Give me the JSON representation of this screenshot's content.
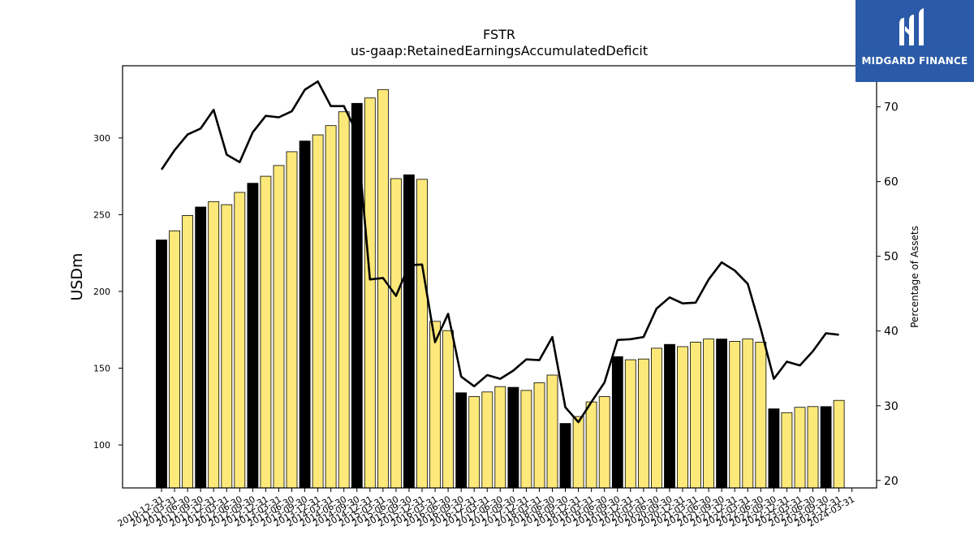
{
  "chart_data": {
    "type": "bar",
    "title": "FSTR",
    "subtitle": "us-gaap:RetainedEarningsAccumulatedDeficit",
    "ylabel": "USDm",
    "y2label": "Percentage of Assets",
    "ylim": [
      72,
      347
    ],
    "y2lim": [
      19,
      75.5
    ],
    "yticks": [
      100,
      150,
      200,
      250,
      300
    ],
    "y2ticks": [
      20,
      30,
      40,
      50,
      60,
      70
    ],
    "grid": false,
    "categories": [
      "2010-12-31",
      "2011-03-31",
      "2011-06-30",
      "2011-09-30",
      "2011-12-31",
      "2012-03-31",
      "2012-06-30",
      "2012-09-30",
      "2012-12-31",
      "2013-03-31",
      "2013-06-30",
      "2013-09-30",
      "2013-12-31",
      "2014-03-31",
      "2014-06-30",
      "2014-09-30",
      "2014-12-31",
      "2015-03-31",
      "2015-06-30",
      "2015-09-30",
      "2015-12-31",
      "2016-03-31",
      "2016-06-30",
      "2016-09-30",
      "2016-12-31",
      "2017-03-31",
      "2017-06-30",
      "2017-09-30",
      "2017-12-31",
      "2018-03-31",
      "2018-06-30",
      "2018-09-30",
      "2018-12-31",
      "2019-03-31",
      "2019-06-30",
      "2019-09-30",
      "2019-12-31",
      "2020-03-31",
      "2020-06-30",
      "2020-09-30",
      "2020-12-31",
      "2021-03-31",
      "2021-06-30",
      "2021-09-30",
      "2021-12-31",
      "2022-03-31",
      "2022-06-30",
      "2022-09-30",
      "2022-12-31",
      "2023-03-31",
      "2023-06-30",
      "2023-09-30",
      "2023-12-31",
      "2024-03-31"
    ],
    "series": [
      {
        "kind": "bar",
        "values": [
          233.5,
          239.5,
          249.5,
          255.0,
          258.5,
          256.5,
          264.5,
          270.5,
          275.0,
          282.0,
          291.0,
          298.0,
          302.0,
          308.0,
          317.0,
          322.5,
          326.0,
          331.5,
          273.5,
          276.0,
          273.0,
          180.5,
          174.5,
          134.0,
          131.5,
          134.5,
          138.0,
          137.5,
          135.5,
          140.5,
          145.5,
          114.0,
          118.5,
          128.0,
          131.5,
          157.5,
          155.5,
          156.0,
          163.0,
          165.5,
          164.0,
          167.0,
          169.0,
          169.0,
          167.5,
          169.0,
          167.0,
          123.5,
          121.0,
          124.5,
          125.0,
          125.0,
          129.0,
          null
        ],
        "colors": [
          "#000000",
          "#fde97a",
          "#fde97a",
          "#000000",
          "#fde97a",
          "#fde97a",
          "#fde97a",
          "#000000",
          "#fde97a",
          "#fde97a",
          "#fde97a",
          "#000000",
          "#fde97a",
          "#fde97a",
          "#fde97a",
          "#000000",
          "#fde97a",
          "#fde97a",
          "#fde97a",
          "#000000",
          "#fde97a",
          "#fde97a",
          "#fde97a",
          "#000000",
          "#fde97a",
          "#fde97a",
          "#fde97a",
          "#000000",
          "#fde97a",
          "#fde97a",
          "#fde97a",
          "#000000",
          "#fde97a",
          "#fde97a",
          "#fde97a",
          "#000000",
          "#fde97a",
          "#fde97a",
          "#fde97a",
          "#000000",
          "#fde97a",
          "#fde97a",
          "#fde97a",
          "#000000",
          "#fde97a",
          "#fde97a",
          "#fde97a",
          "#000000",
          "#fde97a",
          "#fde97a",
          "#fde97a",
          "#000000",
          "#fde97a",
          "#fde97a"
        ]
      },
      {
        "kind": "line",
        "axis": "right",
        "color": "#000000",
        "values": [
          61.6,
          64.2,
          66.3,
          67.1,
          69.6,
          63.6,
          62.6,
          66.6,
          68.8,
          68.6,
          69.4,
          72.3,
          73.4,
          70.1,
          70.1,
          66.5,
          46.9,
          47.1,
          44.7,
          48.8,
          48.9,
          38.5,
          42.3,
          33.9,
          32.6,
          34.1,
          33.6,
          34.7,
          36.2,
          36.1,
          39.2,
          29.8,
          27.8,
          30.5,
          33.1,
          38.8,
          38.9,
          39.2,
          43.0,
          44.5,
          43.7,
          43.8,
          46.9,
          49.2,
          48.1,
          46.3,
          40.3,
          33.6,
          35.9,
          35.4,
          37.3,
          39.7,
          39.5,
          null
        ]
      }
    ],
    "colors": {
      "bar_primary": "#000000",
      "bar_secondary": "#fde97a",
      "line": "#000000"
    }
  },
  "logo": {
    "text": "MIDGARD FINANCE",
    "background": "#2a5aa8"
  }
}
